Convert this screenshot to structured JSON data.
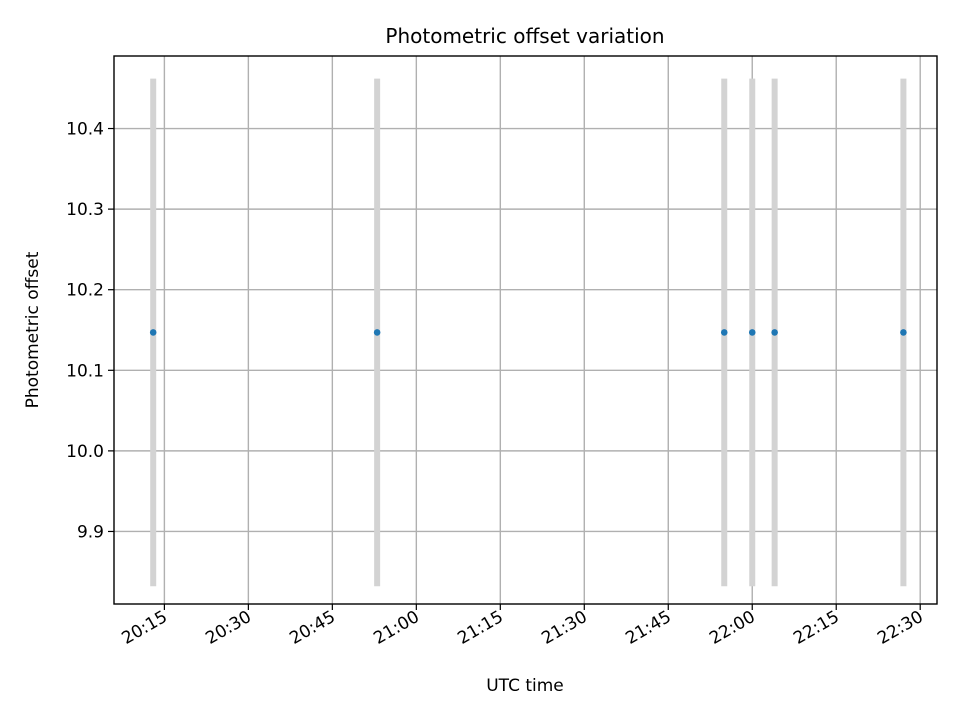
{
  "chart_data": {
    "type": "scatter",
    "title": "Photometric offset variation",
    "xlabel": "UTC time",
    "ylabel": "Photometric offset",
    "x_ticks": [
      "20:15",
      "20:30",
      "20:45",
      "21:00",
      "21:15",
      "21:30",
      "21:45",
      "22:00",
      "22:15",
      "22:30"
    ],
    "x_tick_values": [
      "20:15",
      "20:30",
      "20:45",
      "21:00",
      "21:15",
      "21:30",
      "21:45",
      "22:00",
      "22:15",
      "22:30"
    ],
    "x_range": [
      "20:06",
      "22:33"
    ],
    "y_ticks": [
      "9.9",
      "10.0",
      "10.1",
      "10.2",
      "10.3",
      "10.4"
    ],
    "y_tick_values": [
      9.9,
      10.0,
      10.1,
      10.2,
      10.3,
      10.4
    ],
    "ylim": [
      9.81,
      10.49
    ],
    "grid": true,
    "series": [
      {
        "x": [
          "20:13",
          "20:53",
          "21:55",
          "22:00",
          "22:04",
          "22:27"
        ],
        "y": [
          10.147,
          10.147,
          10.147,
          10.147,
          10.147,
          10.147
        ],
        "yerr": [
          0.315,
          0.315,
          0.315,
          0.315,
          0.315,
          0.315
        ],
        "color": "#1f77b4",
        "errorbar_color": "#d3d3d3"
      }
    ]
  }
}
